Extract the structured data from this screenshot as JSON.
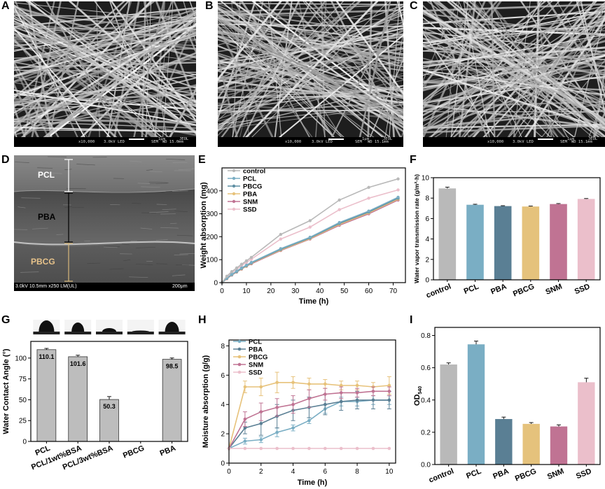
{
  "panels": {
    "a": {
      "label": "A",
      "sem_info": {
        "mag": "x10,000",
        "kv": "3.0kV",
        "det": "LED",
        "sem": "SEM",
        "wd": "WD 15.0mm",
        "scale": "1μm",
        "brand": "JEOL"
      }
    },
    "b": {
      "label": "B",
      "sem_info": {
        "mag": "x10,000",
        "kv": "3.0kV",
        "det": "LED",
        "sem": "SEM",
        "wd": "WD 15.1mm",
        "scale": "1μm",
        "brand": "JEOL"
      }
    },
    "c": {
      "label": "C",
      "sem_info": {
        "mag": "x10,000",
        "kv": "3.0kV",
        "det": "LED",
        "sem": "SEM",
        "wd": "WD 15.1mm",
        "scale": "1μm",
        "brand": "JEOL"
      }
    },
    "d": {
      "label": "D",
      "layers": [
        "PCL",
        "PBA",
        "PBCG"
      ],
      "info": "3.0kV 10.5mm x250 LM(UL)",
      "scale": "200μm"
    },
    "e": {
      "label": "E"
    },
    "f": {
      "label": "F"
    },
    "g": {
      "label": "G"
    },
    "h": {
      "label": "H"
    },
    "i": {
      "label": "I"
    }
  },
  "colors": {
    "control": "#b9b9b9",
    "PCL": "#7aaec4",
    "PBCG_e": "#5f8fa3",
    "PBA": "#e7c27a",
    "SNM": "#c07393",
    "SSD": "#ebbfcb",
    "PBA_f": "#5a7f94",
    "PBCG_f": "#e5c27c"
  },
  "chart_data": [
    {
      "id": "E",
      "type": "line",
      "xlabel": "Time (h)",
      "ylabel": "Weight absorption (mg)",
      "xlim": [
        0,
        75
      ],
      "ylim": [
        0,
        500
      ],
      "xticks": [
        0,
        10,
        20,
        30,
        40,
        50,
        60,
        70
      ],
      "yticks": [
        0,
        100,
        200,
        300,
        400
      ],
      "x": [
        0,
        2,
        4,
        6,
        8,
        10,
        12,
        24,
        36,
        48,
        60,
        72
      ],
      "series": [
        {
          "name": "control",
          "color": "#b9b9b9",
          "values": [
            0,
            28,
            48,
            64,
            80,
            95,
            110,
            210,
            270,
            360,
            415,
            452
          ]
        },
        {
          "name": "PCL",
          "color": "#7aaec4",
          "values": [
            0,
            20,
            36,
            50,
            64,
            76,
            88,
            148,
            198,
            262,
            312,
            372
          ]
        },
        {
          "name": "PBCG",
          "color": "#5f8fa3",
          "values": [
            0,
            19,
            35,
            48,
            62,
            74,
            86,
            145,
            195,
            258,
            308,
            368
          ]
        },
        {
          "name": "PBA",
          "color": "#e7c27a",
          "values": [
            0,
            18,
            34,
            47,
            60,
            72,
            84,
            142,
            192,
            254,
            304,
            364
          ]
        },
        {
          "name": "SNM",
          "color": "#c07393",
          "values": [
            0,
            17,
            33,
            46,
            59,
            71,
            82,
            140,
            190,
            250,
            300,
            360
          ]
        },
        {
          "name": "SSD",
          "color": "#ebbfcb",
          "values": [
            0,
            26,
            44,
            58,
            74,
            88,
            102,
            190,
            242,
            318,
            368,
            404
          ]
        }
      ]
    },
    {
      "id": "F",
      "type": "bar",
      "ylabel": "Water vapor transmission rate (g/m²·h)",
      "ylim": [
        0,
        10
      ],
      "yticks": [
        0,
        2,
        4,
        6,
        8,
        10
      ],
      "categories": [
        "control",
        "PCL",
        "PBA",
        "PBCG",
        "SNM",
        "SSD"
      ],
      "values": [
        8.95,
        7.35,
        7.22,
        7.18,
        7.42,
        7.92
      ],
      "errors": [
        0.12,
        0.05,
        0.04,
        0.04,
        0.05,
        0.04
      ],
      "colors": [
        "#b9b9b9",
        "#7aaec4",
        "#5a7f94",
        "#e5c27c",
        "#c07393",
        "#ebbfcb"
      ]
    },
    {
      "id": "G",
      "type": "bar",
      "ylabel": "Water Contact Angle (°)",
      "ylim": [
        0,
        120
      ],
      "yticks": [
        0,
        25,
        50,
        75,
        100
      ],
      "categories": [
        "PCL",
        "PCL/1wt%BSA",
        "PCL/3wt%BSA",
        "PBCG",
        "PBA"
      ],
      "values": [
        110.1,
        101.6,
        50.3,
        0,
        98.5
      ],
      "value_labels": [
        "110.1",
        "101.6",
        "50.3",
        "",
        "98.5"
      ],
      "errors": [
        1.5,
        1.8,
        3.5,
        0,
        1.6
      ],
      "color": "#bdbdbd"
    },
    {
      "id": "H",
      "type": "line",
      "xlabel": "Time (h)",
      "ylabel": "Moisture absorption (g/g)",
      "xlim": [
        0,
        10.4
      ],
      "ylim": [
        0,
        8.4
      ],
      "xticks": [
        0,
        2,
        4,
        6,
        8,
        10
      ],
      "yticks": [
        0,
        2,
        4,
        6,
        8
      ],
      "x": [
        0,
        1,
        2,
        3,
        4,
        5,
        6,
        7,
        8,
        9,
        10
      ],
      "series": [
        {
          "name": "PCL",
          "color": "#7aaec4",
          "values": [
            1.0,
            1.5,
            1.6,
            2.1,
            2.4,
            2.9,
            3.7,
            4.2,
            4.2,
            4.3,
            4.3
          ],
          "errors": [
            0,
            0.2,
            0.2,
            0.3,
            0.2,
            0.2,
            0.3,
            0.3,
            0.3,
            0.3,
            0.3
          ]
        },
        {
          "name": "PBA",
          "color": "#5a7f94",
          "values": [
            1.0,
            2.4,
            2.7,
            3.2,
            3.6,
            3.8,
            4.0,
            4.2,
            4.3,
            4.3,
            4.3
          ],
          "errors": [
            0,
            0.4,
            0.8,
            0.8,
            0.7,
            0.7,
            0.7,
            0.6,
            0.6,
            0.6,
            0.6
          ]
        },
        {
          "name": "PBCG",
          "color": "#e7c27a",
          "values": [
            1.0,
            5.2,
            5.2,
            5.5,
            5.5,
            5.4,
            5.4,
            5.3,
            5.3,
            5.2,
            5.3
          ],
          "errors": [
            0,
            0.4,
            0.6,
            0.7,
            0.4,
            0.4,
            0.3,
            0.3,
            0.3,
            0.3,
            0.6
          ]
        },
        {
          "name": "SNM",
          "color": "#c07393",
          "values": [
            1.0,
            3.0,
            3.5,
            3.8,
            4.0,
            4.4,
            4.7,
            4.8,
            4.8,
            4.9,
            4.9
          ],
          "errors": [
            0,
            0.5,
            0.6,
            0.6,
            0.6,
            0.6,
            0.4,
            0.4,
            0.3,
            0.3,
            0.3
          ]
        },
        {
          "name": "SSD",
          "color": "#ebbfcb",
          "values": [
            1.0,
            1.0,
            1.0,
            1.0,
            1.0,
            1.0,
            1.0,
            1.0,
            1.0,
            1.0,
            1.0
          ],
          "errors": [
            0,
            0,
            0,
            0,
            0,
            0,
            0,
            0,
            0,
            0,
            0
          ]
        }
      ]
    },
    {
      "id": "I",
      "type": "bar",
      "ylabel": "OD540",
      "ylim": [
        0,
        0.85
      ],
      "yticks": [
        0.0,
        0.2,
        0.4,
        0.6,
        0.8
      ],
      "ytick_labels": [
        "0.0",
        "0.2",
        "0.4",
        "0.6",
        "0.8"
      ],
      "categories": [
        "control",
        "PCL",
        "PBA",
        "PBCG",
        "SNM",
        "SSD"
      ],
      "values": [
        0.62,
        0.745,
        0.282,
        0.252,
        0.236,
        0.51
      ],
      "errors": [
        0.01,
        0.02,
        0.012,
        0.008,
        0.01,
        0.025
      ],
      "colors": [
        "#b9b9b9",
        "#7aaec4",
        "#5a7f94",
        "#e5c27c",
        "#c07393",
        "#ebbfcb"
      ]
    }
  ]
}
